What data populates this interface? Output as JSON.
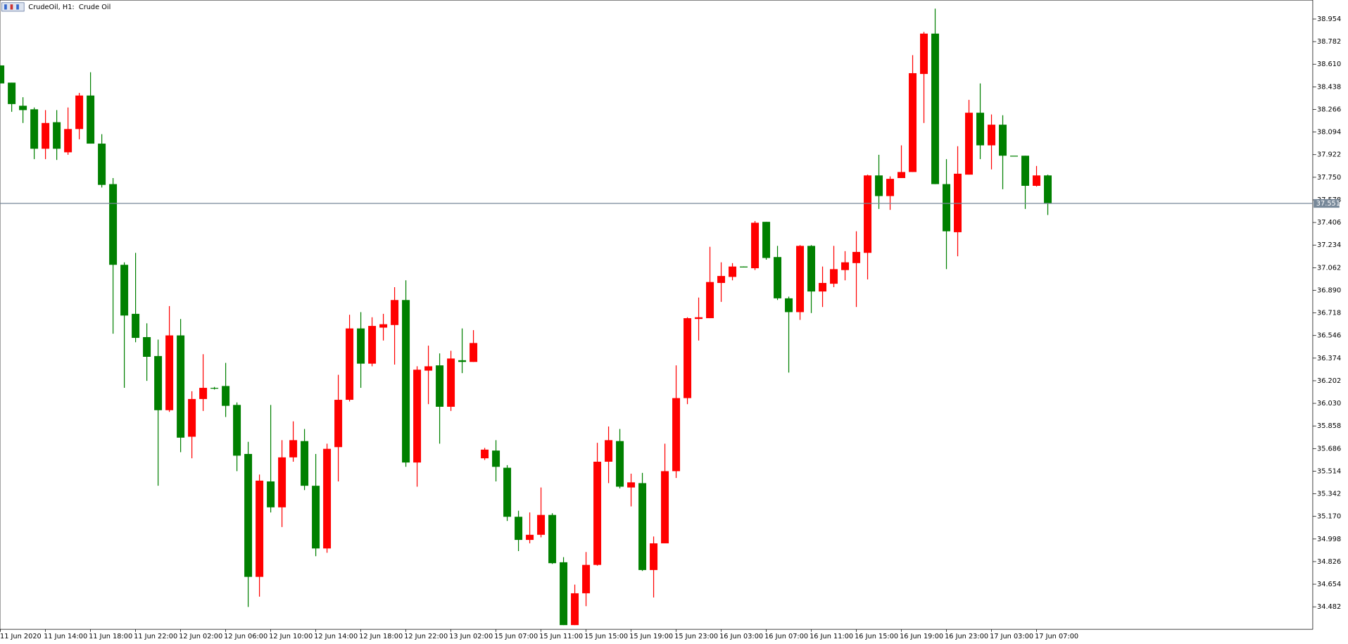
{
  "chart_data": {
    "type": "candlestick",
    "title": "CrudeOil, H1:  Crude Oil",
    "bull_color": "#ff0000",
    "bear_color": "#008000",
    "last_price": 37.551,
    "ylim": [
      34.311,
      39.098
    ],
    "yticks": [
      38.954,
      38.782,
      {
        "value": 38.61,
        "label": "38.610"
      },
      38.438,
      38.266,
      38.094,
      37.922,
      {
        "value": 37.75,
        "label": "37.750"
      },
      37.578,
      37.406,
      37.234,
      37.062,
      {
        "value": 36.89,
        "label": "36.890"
      },
      36.718,
      36.546,
      36.374,
      36.202,
      {
        "value": 36.03,
        "label": "36.030"
      },
      35.858,
      35.686,
      35.514,
      35.342,
      {
        "value": 35.17,
        "label": "35.170"
      },
      34.998,
      34.826,
      34.654,
      34.482
    ],
    "categories": [
      "11 Jun 2020",
      null,
      null,
      null,
      "11 Jun 14:00",
      null,
      null,
      null,
      "11 Jun 18:00",
      null,
      null,
      null,
      "11 Jun 22:00",
      null,
      null,
      null,
      "12 Jun 02:00",
      null,
      null,
      null,
      "12 Jun 06:00",
      null,
      null,
      null,
      "12 Jun 10:00",
      null,
      null,
      null,
      "12 Jun 14:00",
      null,
      null,
      null,
      "12 Jun 18:00",
      null,
      null,
      null,
      "12 Jun 22:00",
      null,
      null,
      null,
      "13 Jun 02:00",
      null,
      null,
      null,
      "15 Jun 07:00",
      null,
      null,
      null,
      "15 Jun 11:00",
      null,
      null,
      null,
      "15 Jun 15:00",
      null,
      null,
      null,
      "15 Jun 19:00",
      null,
      null,
      null,
      "15 Jun 23:00",
      null,
      null,
      null,
      "16 Jun 03:00",
      null,
      null,
      null,
      "16 Jun 07:00",
      null,
      null,
      null,
      "16 Jun 11:00",
      null,
      null,
      null,
      "16 Jun 15:00",
      null,
      null,
      null,
      "16 Jun 19:00",
      null,
      null,
      null,
      "16 Jun 23:00",
      null,
      null,
      null,
      "17 Jun 03:00",
      null,
      null,
      null,
      "17 Jun 07:00",
      null
    ],
    "open": [
      38.601,
      38.47,
      38.294,
      38.267,
      37.967,
      38.169,
      37.94,
      38.117,
      38.372,
      38.006,
      37.698,
      37.084,
      36.711,
      36.534,
      36.39,
      35.978,
      36.547,
      35.776,
      36.063,
      36.148,
      36.162,
      36.018,
      35.645,
      34.71,
      35.436,
      35.239,
      35.619,
      35.743,
      35.403,
      34.926,
      35.697,
      36.057,
      36.6,
      36.332,
      36.606,
      36.626,
      36.816,
      35.58,
      36.279,
      36.319,
      36.004,
      36.358,
      36.345,
      35.612,
      35.671,
      35.54,
      35.167,
      34.991,
      35.03,
      35.181,
      34.821,
      34.343,
      34.585,
      34.801,
      35.586,
      35.743,
      35.39,
      35.423,
      34.762,
      34.965,
      35.514,
      36.07,
      36.672,
      36.678,
      36.946,
      36.992,
      37.071,
      37.058,
      37.411,
      37.143,
      36.829,
      36.724,
      37.228,
      36.881,
      36.94,
      37.044,
      37.097,
      37.175,
      37.764,
      37.607,
      37.744,
      37.79,
      38.536,
      38.843,
      37.698,
      37.332,
      37.77,
      38.241,
      37.993,
      38.15,
      37.914,
      37.914,
      37.685,
      37.764
    ],
    "high": [
      38.601,
      38.47,
      38.359,
      38.281,
      38.261,
      38.261,
      38.281,
      38.392,
      38.549,
      38.078,
      37.744,
      37.103,
      37.175,
      36.639,
      36.515,
      36.77,
      36.672,
      36.122,
      36.404,
      36.155,
      36.338,
      36.037,
      35.737,
      35.488,
      36.018,
      35.75,
      35.893,
      35.835,
      35.645,
      35.723,
      36.247,
      36.704,
      36.724,
      36.685,
      36.711,
      36.914,
      36.966,
      36.312,
      36.469,
      36.41,
      36.43,
      36.6,
      36.587,
      35.691,
      35.75,
      35.56,
      35.213,
      35.2,
      35.39,
      35.194,
      34.86,
      34.651,
      34.899,
      35.73,
      35.854,
      35.835,
      35.495,
      35.501,
      35.017,
      35.723,
      36.319,
      36.685,
      36.835,
      37.221,
      37.103,
      37.097,
      37.071,
      37.417,
      37.411,
      37.228,
      36.842,
      37.234,
      37.234,
      37.071,
      37.228,
      37.188,
      37.339,
      37.77,
      37.921,
      37.757,
      37.993,
      38.679,
      38.856,
      39.033,
      37.888,
      37.986,
      38.339,
      38.464,
      38.228,
      38.222,
      37.914,
      37.914,
      37.836,
      37.77
    ],
    "low": [
      38.464,
      38.248,
      38.163,
      37.888,
      37.888,
      37.882,
      37.921,
      38.039,
      38.006,
      37.672,
      36.56,
      36.148,
      36.495,
      36.201,
      35.403,
      35.965,
      35.658,
      35.612,
      35.972,
      36.135,
      35.926,
      35.514,
      34.481,
      34.559,
      35.2,
      35.089,
      35.586,
      35.37,
      34.867,
      34.893,
      35.436,
      36.044,
      36.148,
      36.312,
      36.508,
      36.325,
      35.547,
      35.396,
      36.024,
      35.723,
      35.972,
      36.26,
      36.345,
      35.599,
      35.436,
      35.135,
      34.906,
      34.965,
      35.011,
      34.808,
      34.343,
      34.343,
      34.487,
      34.795,
      35.423,
      35.383,
      35.246,
      34.755,
      34.553,
      34.965,
      35.462,
      36.024,
      36.508,
      36.678,
      36.802,
      36.966,
      37.064,
      37.044,
      37.123,
      36.816,
      36.264,
      36.665,
      36.717,
      36.763,
      36.914,
      36.966,
      36.763,
      36.973,
      37.509,
      37.502,
      37.744,
      37.79,
      38.163,
      37.698,
      37.051,
      37.149,
      37.77,
      37.888,
      37.81,
      37.659,
      37.914,
      37.509,
      37.679,
      37.463
    ],
    "close": [
      38.464,
      38.307,
      38.261,
      37.967,
      38.163,
      37.967,
      38.117,
      38.372,
      38.006,
      37.692,
      37.084,
      36.698,
      36.528,
      36.384,
      35.978,
      36.547,
      35.769,
      36.063,
      36.148,
      36.142,
      36.011,
      35.632,
      34.71,
      35.442,
      35.239,
      35.619,
      35.75,
      35.403,
      34.926,
      35.684,
      36.057,
      36.6,
      36.332,
      36.619,
      36.632,
      36.816,
      35.58,
      36.286,
      36.312,
      36.004,
      36.371,
      36.345,
      36.489,
      35.678,
      35.547,
      35.167,
      34.991,
      35.03,
      35.181,
      34.814,
      34.343,
      34.585,
      34.801,
      35.586,
      35.75,
      35.396,
      35.429,
      34.762,
      34.965,
      35.514,
      36.07,
      36.678,
      36.685,
      36.953,
      36.999,
      37.071,
      37.064,
      37.404,
      37.136,
      36.829,
      36.724,
      37.228,
      36.881,
      36.946,
      37.051,
      37.103,
      37.182,
      37.764,
      37.607,
      37.738,
      37.79,
      38.542,
      38.843,
      37.698,
      37.339,
      37.777,
      38.241,
      37.993,
      38.15,
      37.914,
      37.914,
      37.685,
      37.764,
      37.551
    ]
  }
}
